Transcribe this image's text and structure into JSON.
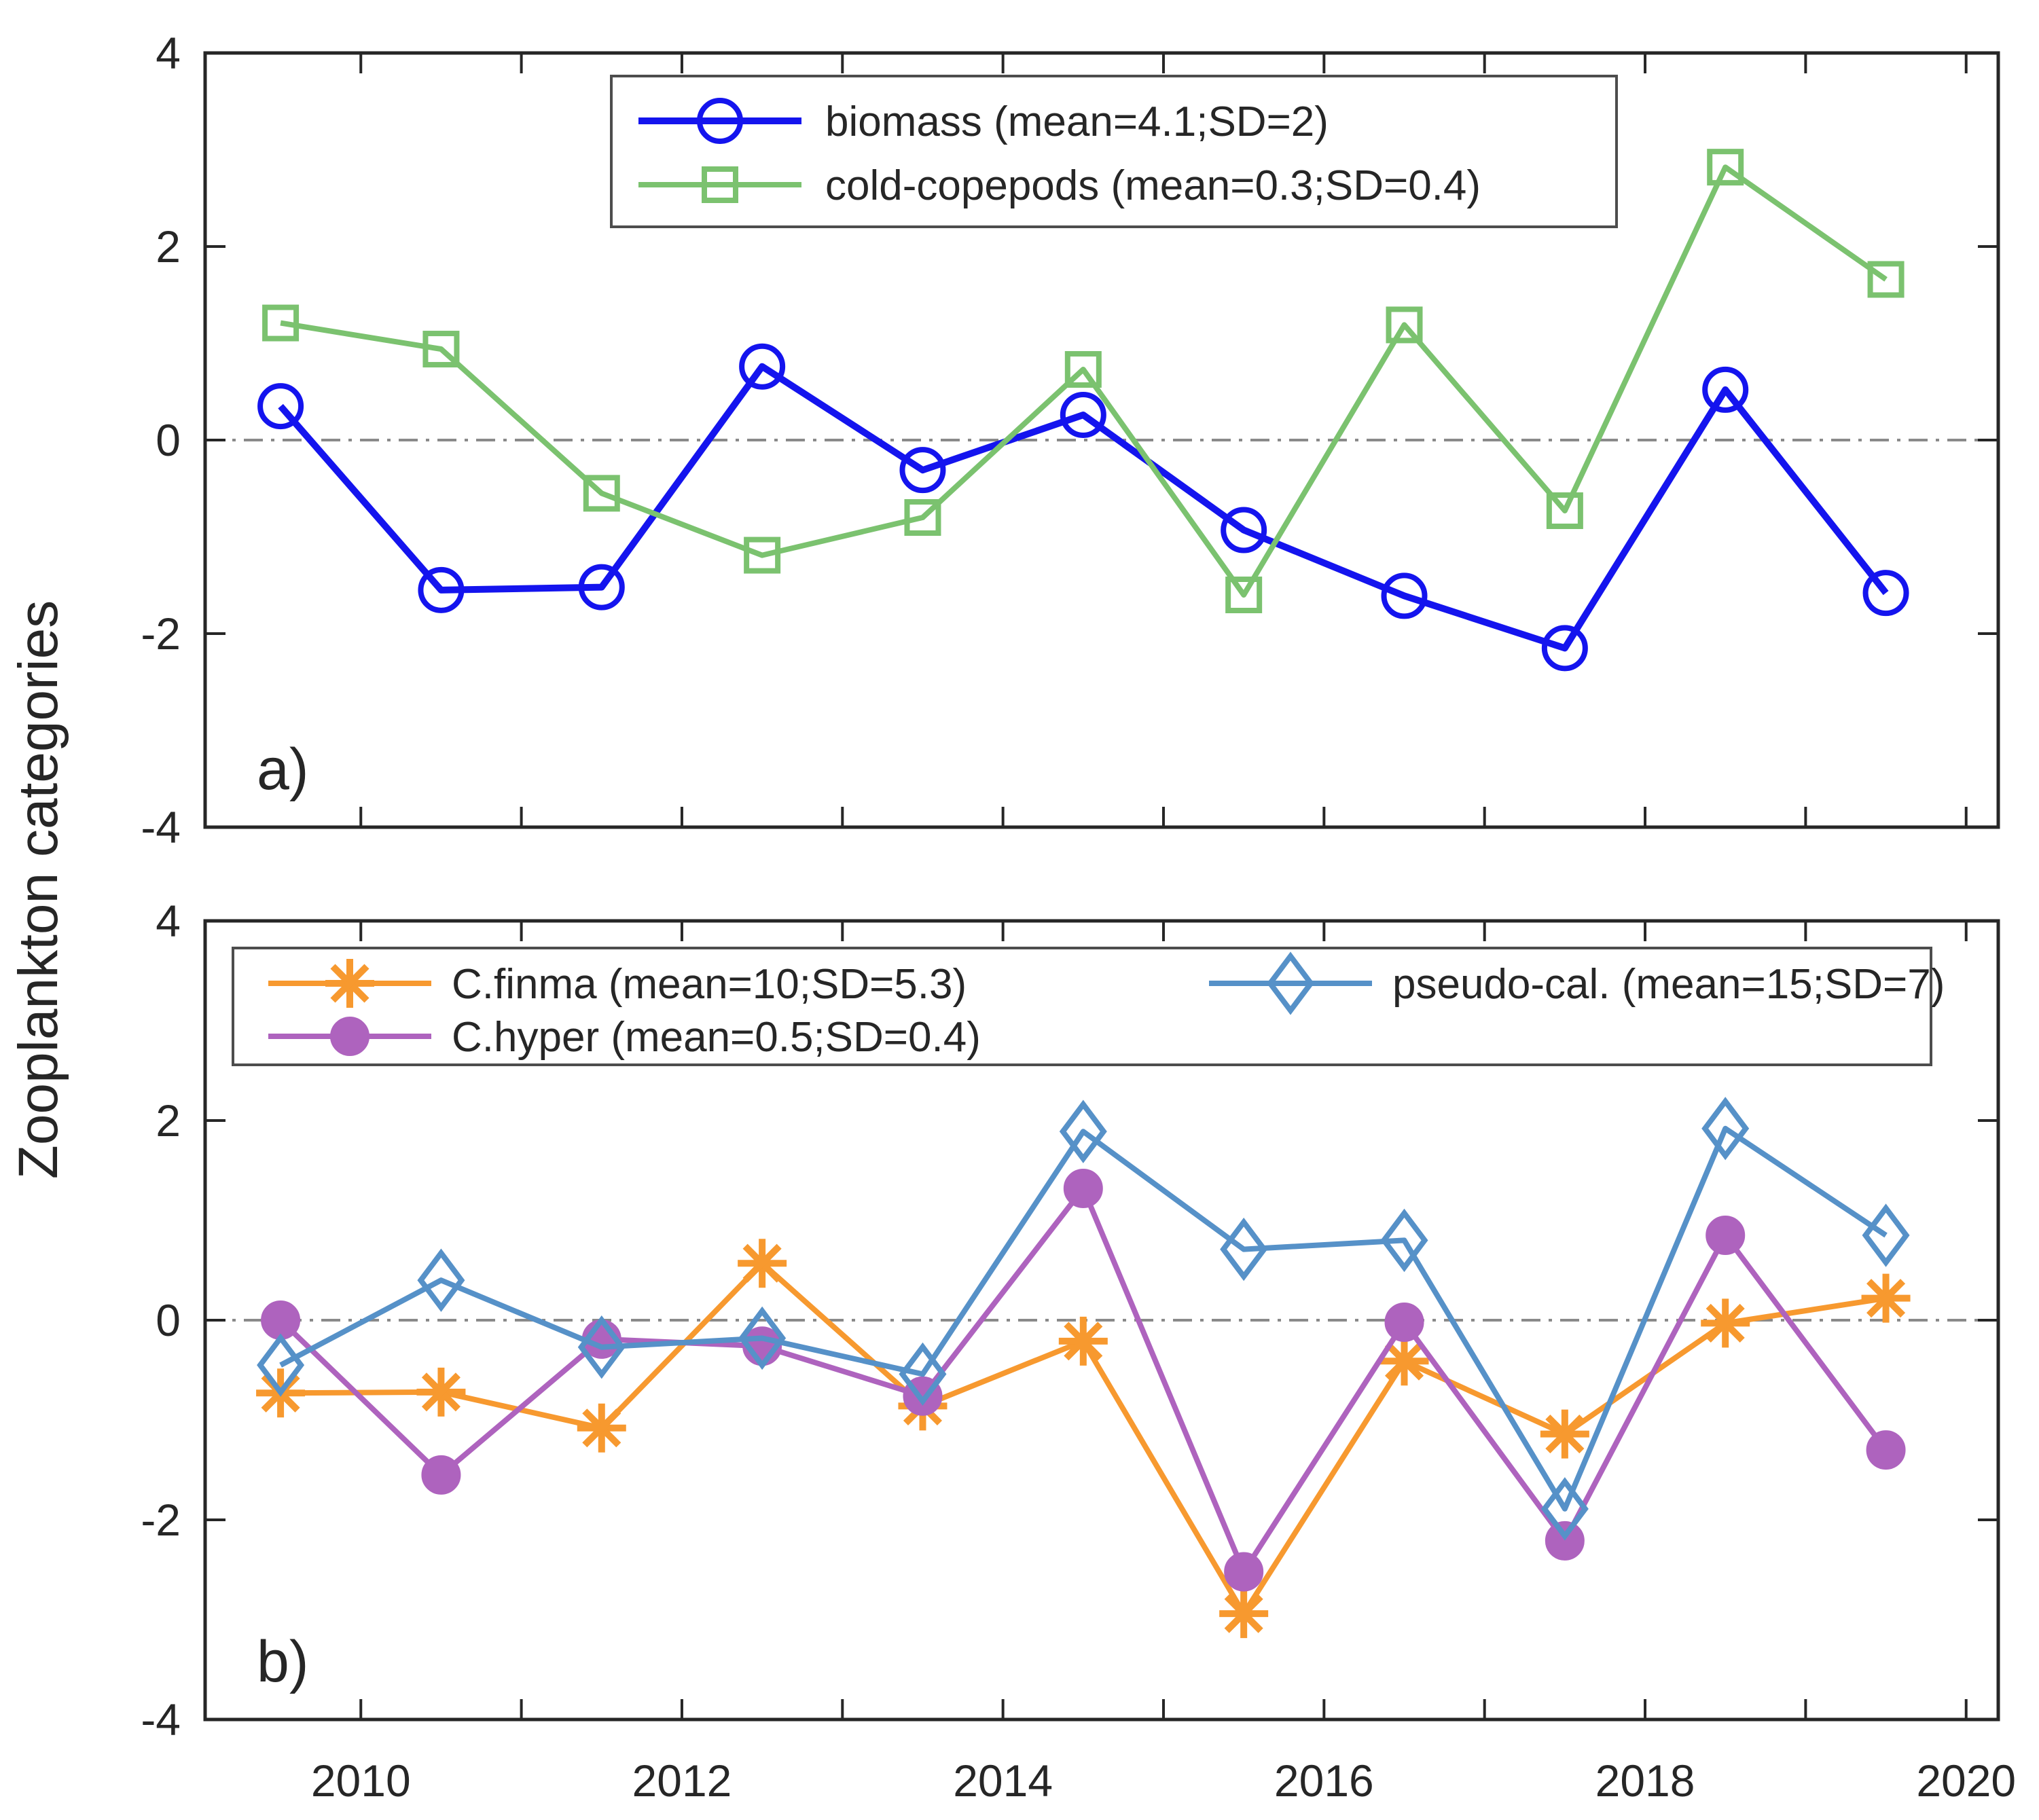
{
  "figure": {
    "ylabel": "Zooplankton categories",
    "background": "#ffffff"
  },
  "axes_style": {
    "axis_color": "#262626",
    "tick_label_color": "#262626",
    "zero_line_color": "#8a8a8a",
    "legend_border_color": "#4d4d4d"
  },
  "x_axis": {
    "xlim": [
      2009.03,
      2020.2
    ],
    "tick_years": [
      2010,
      2011,
      2012,
      2013,
      2014,
      2015,
      2016,
      2017,
      2018,
      2019,
      2020
    ],
    "label_years": [
      "2010",
      "2012",
      "2014",
      "2016",
      "2018",
      "2020"
    ]
  },
  "chart_data": [
    {
      "panel": "a",
      "type": "line",
      "title_letter": "a)",
      "ylim": [
        -4,
        4
      ],
      "yticks": [
        "4",
        "2",
        "0",
        "-2",
        "-4"
      ],
      "ytick_values": [
        4,
        2,
        0,
        -2,
        -4
      ],
      "zero_line": true,
      "grid": false,
      "legend_position": "top-center",
      "x": [
        2009.5,
        2010.5,
        2011.5,
        2012.5,
        2013.5,
        2014.5,
        2015.5,
        2016.5,
        2017.5,
        2018.5,
        2019.5
      ],
      "series": [
        {
          "name": "biomass (mean=4.1;SD=2)",
          "marker": "open-circle",
          "color": "#1414ee",
          "values": [
            0.35,
            -1.55,
            -1.52,
            0.76,
            -0.31,
            0.26,
            -0.93,
            -1.61,
            -2.15,
            0.52,
            -1.58
          ]
        },
        {
          "name": "cold-copepods (mean=0.3;SD=0.4)",
          "marker": "open-square",
          "color": "#7bc26f",
          "values": [
            1.21,
            0.94,
            -0.55,
            -1.19,
            -0.8,
            0.73,
            -1.6,
            1.19,
            -0.73,
            2.82,
            1.66
          ]
        }
      ]
    },
    {
      "panel": "b",
      "type": "line",
      "title_letter": "b)",
      "ylim": [
        -4,
        4
      ],
      "yticks": [
        "4",
        "2",
        "0",
        "-2",
        "-4"
      ],
      "ytick_values": [
        4,
        2,
        0,
        -2,
        -4
      ],
      "zero_line": true,
      "grid": false,
      "legend_position": "top-left",
      "x": [
        2009.5,
        2010.5,
        2011.5,
        2012.5,
        2013.5,
        2014.5,
        2015.5,
        2016.5,
        2017.5,
        2018.5,
        2019.5
      ],
      "series": [
        {
          "name": "C.finma (mean=10;SD=5.3)",
          "marker": "asterisk",
          "color": "#f7992f",
          "values": [
            -0.73,
            -0.72,
            -1.08,
            0.57,
            -0.86,
            -0.21,
            -2.94,
            -0.41,
            -1.14,
            -0.03,
            0.22
          ]
        },
        {
          "name": "C.hyper (mean=0.5;SD=0.4)",
          "marker": "filled-circle",
          "color": "#ae63be",
          "values": [
            0.0,
            -1.55,
            -0.19,
            -0.26,
            -0.76,
            1.32,
            -2.52,
            -0.02,
            -2.21,
            0.85,
            -1.3
          ]
        },
        {
          "name": "pseudo-cal. (mean=15;SD=7)",
          "marker": "open-diamond",
          "color": "#5691c8",
          "values": [
            -0.45,
            0.4,
            -0.27,
            -0.18,
            -0.54,
            1.89,
            0.71,
            0.8,
            -1.89,
            1.92,
            0.85
          ]
        }
      ]
    }
  ]
}
